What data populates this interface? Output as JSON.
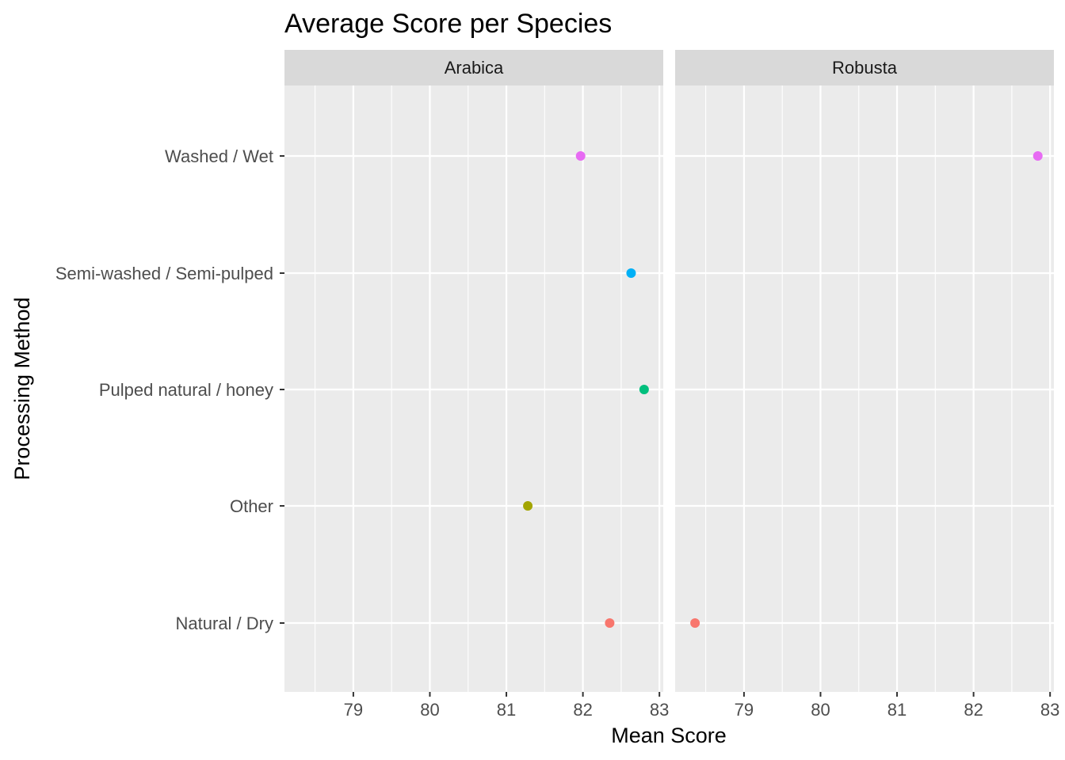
{
  "chart_data": {
    "type": "scatter",
    "title": "Average Score per Species",
    "xlabel": "Mean Score",
    "ylabel": "Processing Method",
    "xlim": [
      78.1,
      83.05
    ],
    "x_ticks": [
      79,
      80,
      81,
      82,
      83
    ],
    "categories": [
      "Natural / Dry",
      "Other",
      "Pulped natural / honey",
      "Semi-washed / Semi-pulped",
      "Washed / Wet"
    ],
    "category_colors": [
      "#F8766D",
      "#A3A500",
      "#00BF7D",
      "#00B0F6",
      "#E76BF3"
    ],
    "grid": true,
    "legend": "none",
    "facets": [
      {
        "name": "Arabica",
        "points": [
          {
            "category": "Natural / Dry",
            "x": 82.35
          },
          {
            "category": "Other",
            "x": 81.28
          },
          {
            "category": "Pulped natural / honey",
            "x": 82.8
          },
          {
            "category": "Semi-washed / Semi-pulped",
            "x": 82.63
          },
          {
            "category": "Washed / Wet",
            "x": 81.97
          }
        ]
      },
      {
        "name": "Robusta",
        "points": [
          {
            "category": "Natural / Dry",
            "x": 78.36
          },
          {
            "category": "Washed / Wet",
            "x": 82.84
          }
        ]
      }
    ]
  }
}
